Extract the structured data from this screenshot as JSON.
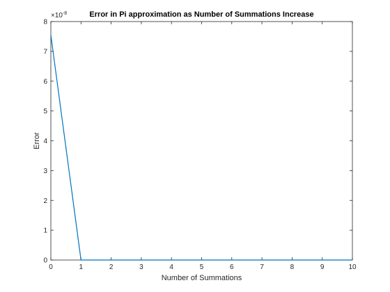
{
  "chart_data": {
    "type": "line",
    "title": "Error in Pi approximation as Number of Summations Increase",
    "xlabel": "Number of Summations",
    "ylabel": "Error",
    "y_exponent_label": "×10",
    "y_exponent_power": "-8",
    "xlim": [
      0,
      10
    ],
    "ylim": [
      0,
      8
    ],
    "xticks": [
      "0",
      "1",
      "2",
      "3",
      "4",
      "5",
      "6",
      "7",
      "8",
      "9",
      "10"
    ],
    "yticks": [
      "0",
      "1",
      "2",
      "3",
      "4",
      "5",
      "6",
      "7",
      "8"
    ],
    "grid": false,
    "series": [
      {
        "color": "#0072BD",
        "x": [
          0,
          1,
          2,
          3,
          4,
          5,
          6,
          7,
          8,
          9,
          10
        ],
        "y": [
          7.55,
          0,
          0,
          0,
          0,
          0,
          0,
          0,
          0,
          0,
          0
        ]
      }
    ]
  }
}
